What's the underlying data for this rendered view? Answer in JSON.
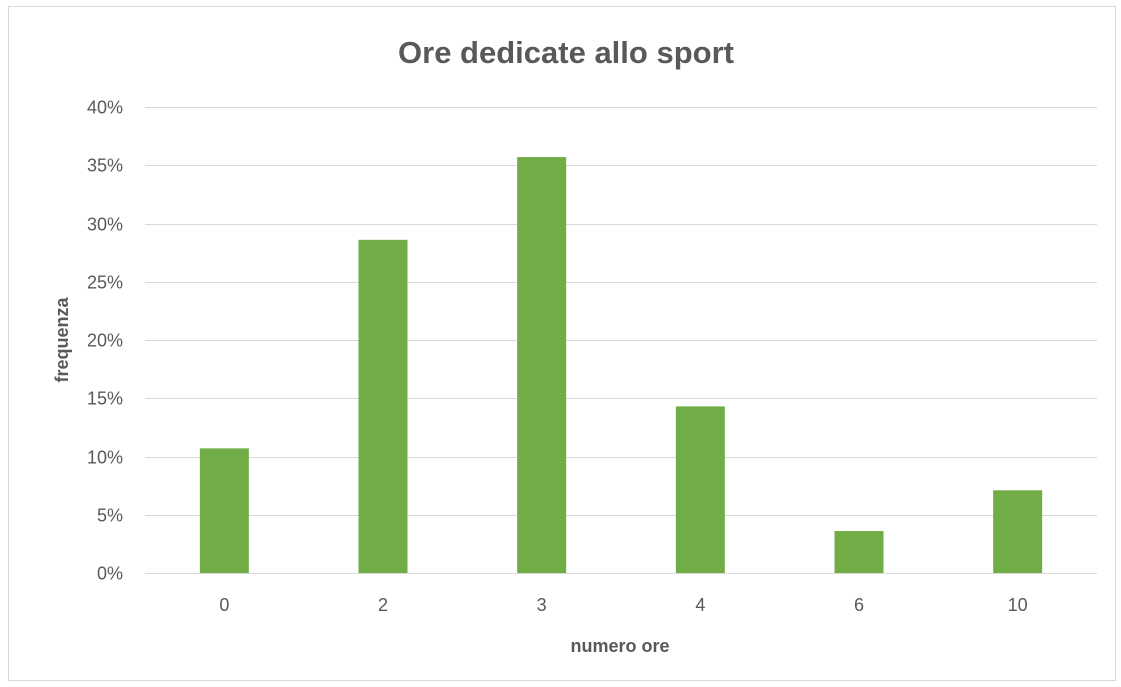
{
  "chart_data": {
    "type": "bar",
    "title": "Ore dedicate allo sport",
    "xlabel": "numero ore",
    "ylabel": "frequenza",
    "categories": [
      "0",
      "2",
      "3",
      "4",
      "6",
      "10"
    ],
    "values": [
      0.107,
      0.286,
      0.357,
      0.143,
      0.036,
      0.071
    ],
    "ylim": [
      0,
      0.4
    ],
    "yticks": [
      0,
      0.05,
      0.1,
      0.15,
      0.2,
      0.25,
      0.3,
      0.35,
      0.4
    ],
    "ytick_labels": [
      "0%",
      "5%",
      "10%",
      "15%",
      "20%",
      "25%",
      "30%",
      "35%",
      "40%"
    ],
    "grid": true,
    "legend": "none",
    "colors": {
      "bar": "#70ad47",
      "grid": "#d9d9d9",
      "text": "#595959"
    }
  }
}
